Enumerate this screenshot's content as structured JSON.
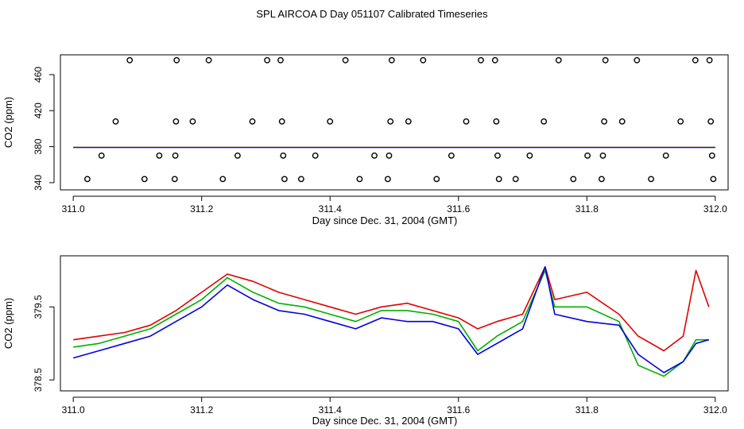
{
  "title": "SPL AIRCOA D  Day 051107  Calibrated Timeseries",
  "colors": {
    "s1": "#e00000",
    "s2": "#00b000",
    "s3": "#0000e0",
    "axis": "#000000"
  },
  "chart_data": [
    {
      "type": "scatter",
      "xlabel": "Day since Dec. 31, 2004 (GMT)",
      "ylabel": "CO2 (ppm)",
      "xlim": [
        310.98,
        312.02
      ],
      "ylim": [
        332,
        482
      ],
      "xticks": [
        311.0,
        311.2,
        311.4,
        311.6,
        311.8,
        312.0
      ],
      "xtick_labels": [
        "311.0",
        "311.2",
        "311.4",
        "311.6",
        "311.8",
        "312.0"
      ],
      "yticks": [
        340,
        380,
        420,
        460
      ],
      "ytick_labels": [
        "340",
        "380",
        "420",
        "460"
      ],
      "calibration_points": [
        {
          "x": 311.022,
          "y": 344
        },
        {
          "x": 311.044,
          "y": 370
        },
        {
          "x": 311.066,
          "y": 408
        },
        {
          "x": 311.088,
          "y": 476
        },
        {
          "x": 311.111,
          "y": 344
        },
        {
          "x": 311.134,
          "y": 370
        },
        {
          "x": 311.158,
          "y": 344
        },
        {
          "x": 311.159,
          "y": 370
        },
        {
          "x": 311.16,
          "y": 408
        },
        {
          "x": 311.161,
          "y": 476
        },
        {
          "x": 311.186,
          "y": 408
        },
        {
          "x": 311.211,
          "y": 476
        },
        {
          "x": 311.233,
          "y": 344
        },
        {
          "x": 311.256,
          "y": 370
        },
        {
          "x": 311.279,
          "y": 408
        },
        {
          "x": 311.302,
          "y": 476
        },
        {
          "x": 311.323,
          "y": 476
        },
        {
          "x": 311.325,
          "y": 408
        },
        {
          "x": 311.327,
          "y": 370
        },
        {
          "x": 311.329,
          "y": 344
        },
        {
          "x": 311.355,
          "y": 344
        },
        {
          "x": 311.377,
          "y": 370
        },
        {
          "x": 311.4,
          "y": 408
        },
        {
          "x": 311.424,
          "y": 476
        },
        {
          "x": 311.446,
          "y": 344
        },
        {
          "x": 311.469,
          "y": 370
        },
        {
          "x": 311.49,
          "y": 344
        },
        {
          "x": 311.492,
          "y": 370
        },
        {
          "x": 311.494,
          "y": 408
        },
        {
          "x": 311.496,
          "y": 476
        },
        {
          "x": 311.522,
          "y": 408
        },
        {
          "x": 311.545,
          "y": 476
        },
        {
          "x": 311.566,
          "y": 344
        },
        {
          "x": 311.589,
          "y": 370
        },
        {
          "x": 311.612,
          "y": 408
        },
        {
          "x": 311.635,
          "y": 476
        },
        {
          "x": 311.657,
          "y": 476
        },
        {
          "x": 311.659,
          "y": 408
        },
        {
          "x": 311.661,
          "y": 370
        },
        {
          "x": 311.663,
          "y": 344
        },
        {
          "x": 311.689,
          "y": 344
        },
        {
          "x": 311.711,
          "y": 370
        },
        {
          "x": 311.733,
          "y": 408
        },
        {
          "x": 311.756,
          "y": 476
        },
        {
          "x": 311.779,
          "y": 344
        },
        {
          "x": 311.801,
          "y": 370
        },
        {
          "x": 311.823,
          "y": 344
        },
        {
          "x": 311.825,
          "y": 370
        },
        {
          "x": 311.827,
          "y": 408
        },
        {
          "x": 311.829,
          "y": 476
        },
        {
          "x": 311.855,
          "y": 408
        },
        {
          "x": 311.878,
          "y": 476
        },
        {
          "x": 311.9,
          "y": 344
        },
        {
          "x": 311.923,
          "y": 370
        },
        {
          "x": 311.946,
          "y": 408
        },
        {
          "x": 311.969,
          "y": 476
        },
        {
          "x": 311.991,
          "y": 476
        },
        {
          "x": 311.993,
          "y": 408
        },
        {
          "x": 311.995,
          "y": 370
        },
        {
          "x": 311.997,
          "y": 344
        }
      ],
      "baseline_lines": [
        {
          "name": "red",
          "x": [
            311.0,
            312.0
          ],
          "y": [
            379.3,
            379.3
          ]
        },
        {
          "name": "green",
          "x": [
            311.0,
            312.0
          ],
          "y": [
            379.2,
            379.2
          ]
        },
        {
          "name": "blue",
          "x": [
            311.0,
            312.0
          ],
          "y": [
            379.0,
            379.0
          ]
        }
      ]
    },
    {
      "type": "line",
      "xlabel": "Day since Dec. 31, 2004 (GMT)",
      "ylabel": "CO2 (ppm)",
      "xlim": [
        310.98,
        312.02
      ],
      "ylim": [
        378.35,
        380.2
      ],
      "xticks": [
        311.0,
        311.2,
        311.4,
        311.6,
        311.8,
        312.0
      ],
      "xtick_labels": [
        "311.0",
        "311.2",
        "311.4",
        "311.6",
        "311.8",
        "312.0"
      ],
      "yticks": [
        378.5,
        379.5
      ],
      "ytick_labels": [
        "378.5",
        "379.5"
      ],
      "x": [
        311.0,
        311.04,
        311.08,
        311.12,
        311.16,
        311.2,
        311.24,
        311.28,
        311.32,
        311.36,
        311.4,
        311.44,
        311.48,
        311.52,
        311.56,
        311.6,
        311.63,
        311.66,
        311.7,
        311.735,
        311.75,
        311.8,
        311.85,
        311.88,
        311.92,
        311.95,
        311.97,
        311.99
      ],
      "series": [
        {
          "name": "red",
          "values": [
            379.05,
            379.1,
            379.15,
            379.25,
            379.45,
            379.7,
            379.95,
            379.85,
            379.7,
            379.6,
            379.5,
            379.4,
            379.5,
            379.55,
            379.45,
            379.35,
            379.2,
            379.3,
            379.4,
            380.05,
            379.6,
            379.7,
            379.4,
            379.1,
            378.9,
            379.1,
            380.0,
            379.5
          ]
        },
        {
          "name": "green",
          "values": [
            378.95,
            379.0,
            379.1,
            379.2,
            379.4,
            379.6,
            379.9,
            379.7,
            379.55,
            379.5,
            379.4,
            379.3,
            379.45,
            379.45,
            379.4,
            379.3,
            378.9,
            379.1,
            379.3,
            380.0,
            379.5,
            379.5,
            379.3,
            378.7,
            378.55,
            378.75,
            379.05,
            379.05
          ]
        },
        {
          "name": "blue",
          "values": [
            378.8,
            378.9,
            379.0,
            379.1,
            379.3,
            379.5,
            379.8,
            379.6,
            379.45,
            379.4,
            379.3,
            379.2,
            379.35,
            379.3,
            379.3,
            379.2,
            378.85,
            379.0,
            379.2,
            380.05,
            379.4,
            379.3,
            379.25,
            378.85,
            378.6,
            378.75,
            379.0,
            379.05
          ]
        }
      ]
    }
  ]
}
